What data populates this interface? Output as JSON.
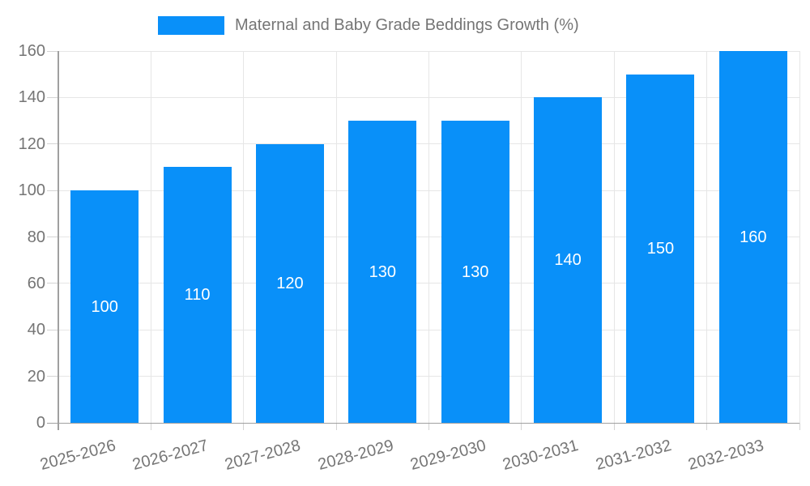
{
  "legend": {
    "label": "Maternal and Baby Grade Beddings Growth (%)"
  },
  "chart_data": {
    "type": "bar",
    "title": "Maternal and Baby Grade Beddings Growth (%)",
    "categories": [
      "2025-2026",
      "2026-2027",
      "2027-2028",
      "2028-2029",
      "2029-2030",
      "2030-2031",
      "2031-2032",
      "2032-2033"
    ],
    "values": [
      100,
      110,
      120,
      130,
      130,
      140,
      150,
      160
    ],
    "xlabel": "",
    "ylabel": "",
    "ylim": [
      0,
      160
    ],
    "yticks": [
      0,
      20,
      40,
      60,
      80,
      100,
      120,
      140,
      160
    ],
    "grid": true,
    "legend_position": "top",
    "bar_color": "#0990F9",
    "bar_label_color": "#FFFFFF",
    "axis_text_color": "#757575",
    "grid_color": "#E6E6E6",
    "tick_color": "#D4D4D4",
    "axis_line_color": "#A0A0A0"
  }
}
